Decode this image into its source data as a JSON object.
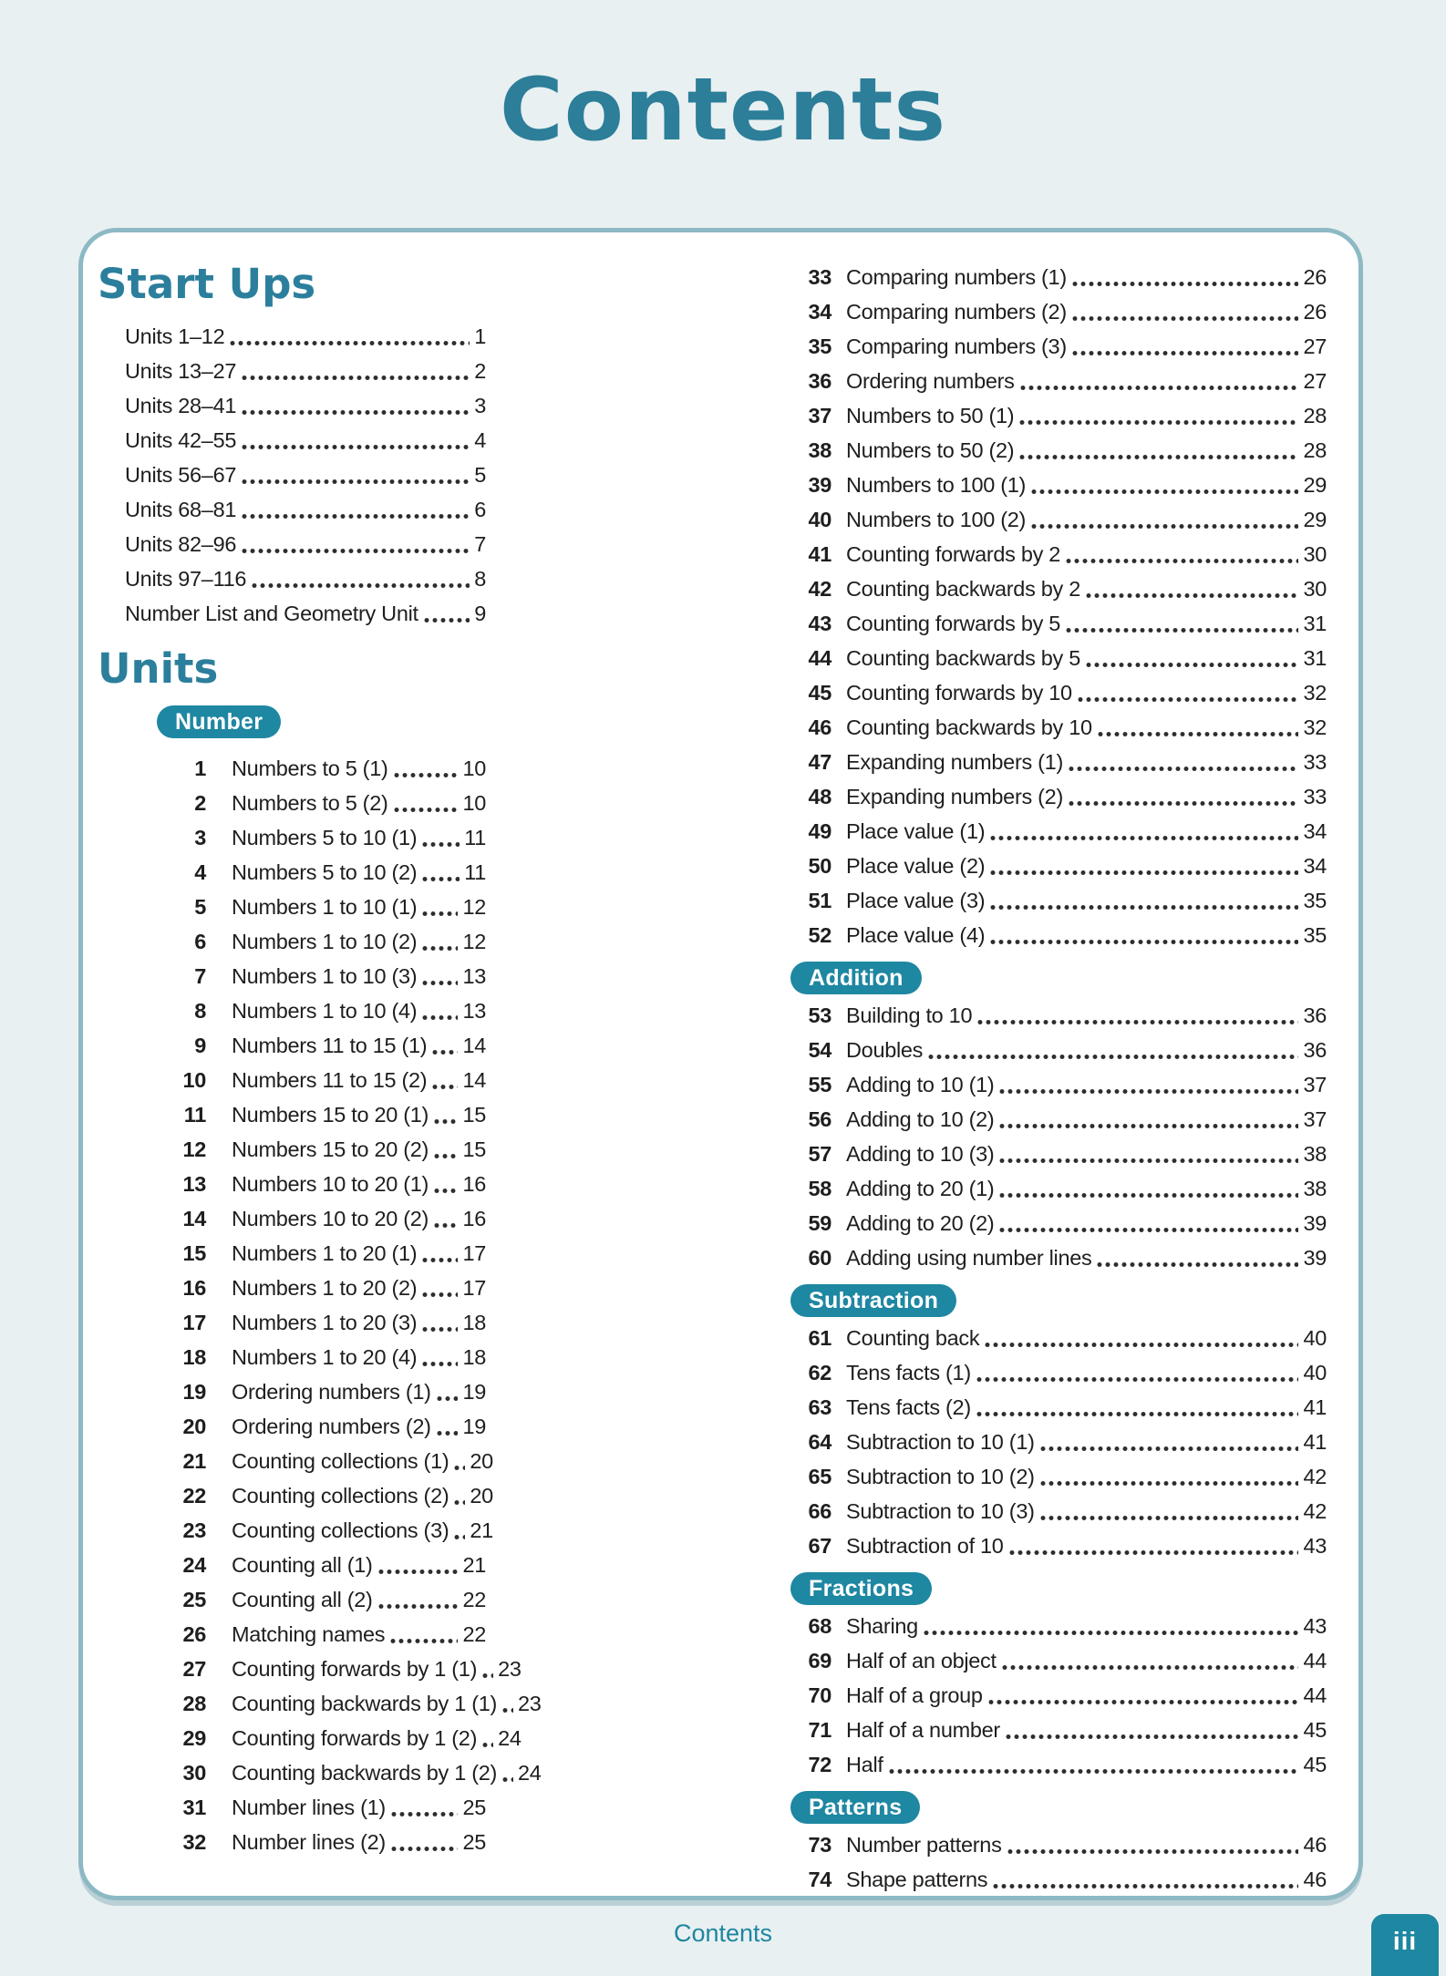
{
  "page_title": "Contents",
  "colors": {
    "page_background": "#e9f0f2",
    "panel_background": "#ffffff",
    "panel_border": "#8db9c4",
    "accent_teal": "#1e87a2",
    "heading_teal": "#2c7f9c",
    "title_teal": "#2c7e99",
    "footer_teal": "#1f86a0",
    "body_text": "#1e1e1e"
  },
  "toc": {
    "start_ups": {
      "heading": "Start Ups",
      "items": [
        {
          "label": "Units 1–12",
          "page": "1"
        },
        {
          "label": "Units 13–27",
          "page": "2"
        },
        {
          "label": "Units 28–41",
          "page": "3"
        },
        {
          "label": "Units 42–55",
          "page": "4"
        },
        {
          "label": "Units 56–67",
          "page": "5"
        },
        {
          "label": "Units 68–81",
          "page": "6"
        },
        {
          "label": "Units 82–96",
          "page": "7"
        },
        {
          "label": "Units 97–116",
          "page": "8"
        },
        {
          "label": "Number List and Geometry Unit",
          "page": "9"
        }
      ]
    },
    "units": {
      "heading": "Units",
      "groups": [
        {
          "badge": "Number",
          "items": [
            {
              "num": "1",
              "label": "Numbers to 5 (1)",
              "page": "10"
            },
            {
              "num": "2",
              "label": "Numbers to 5 (2)",
              "page": "10"
            },
            {
              "num": "3",
              "label": "Numbers 5 to 10 (1)",
              "page": "11"
            },
            {
              "num": "4",
              "label": "Numbers 5 to 10 (2)",
              "page": "11"
            },
            {
              "num": "5",
              "label": "Numbers 1 to 10 (1)",
              "page": "12"
            },
            {
              "num": "6",
              "label": "Numbers 1 to 10 (2)",
              "page": "12"
            },
            {
              "num": "7",
              "label": "Numbers 1 to 10 (3)",
              "page": "13"
            },
            {
              "num": "8",
              "label": "Numbers 1 to 10 (4)",
              "page": "13"
            },
            {
              "num": "9",
              "label": "Numbers 11 to 15 (1)",
              "page": "14"
            },
            {
              "num": "10",
              "label": "Numbers 11 to 15 (2)",
              "page": "14"
            },
            {
              "num": "11",
              "label": "Numbers 15 to 20 (1)",
              "page": "15"
            },
            {
              "num": "12",
              "label": "Numbers 15 to 20 (2)",
              "page": "15"
            },
            {
              "num": "13",
              "label": "Numbers 10 to 20 (1)",
              "page": "16"
            },
            {
              "num": "14",
              "label": "Numbers 10 to 20 (2)",
              "page": "16"
            },
            {
              "num": "15",
              "label": "Numbers 1 to 20 (1)",
              "page": "17"
            },
            {
              "num": "16",
              "label": "Numbers 1 to 20 (2)",
              "page": "17"
            },
            {
              "num": "17",
              "label": "Numbers 1 to 20 (3)",
              "page": "18"
            },
            {
              "num": "18",
              "label": "Numbers 1 to 20 (4)",
              "page": "18"
            },
            {
              "num": "19",
              "label": "Ordering numbers (1)",
              "page": "19"
            },
            {
              "num": "20",
              "label": "Ordering numbers (2)",
              "page": "19"
            },
            {
              "num": "21",
              "label": "Counting collections (1)",
              "page": "20"
            },
            {
              "num": "22",
              "label": "Counting collections (2)",
              "page": "20"
            },
            {
              "num": "23",
              "label": "Counting collections (3)",
              "page": "21"
            },
            {
              "num": "24",
              "label": "Counting all (1)",
              "page": "21"
            },
            {
              "num": "25",
              "label": "Counting all (2)",
              "page": "22"
            },
            {
              "num": "26",
              "label": "Matching names",
              "page": "22"
            },
            {
              "num": "27",
              "label": "Counting forwards by 1 (1)",
              "page": "23"
            },
            {
              "num": "28",
              "label": "Counting backwards by 1 (1)",
              "page": "23"
            },
            {
              "num": "29",
              "label": "Counting forwards by 1 (2)",
              "page": "24"
            },
            {
              "num": "30",
              "label": "Counting backwards by 1 (2)",
              "page": "24"
            },
            {
              "num": "31",
              "label": "Number lines (1)",
              "page": "25"
            },
            {
              "num": "32",
              "label": "Number lines (2)",
              "page": "25"
            },
            {
              "num": "33",
              "label": "Comparing numbers (1)",
              "page": "26"
            },
            {
              "num": "34",
              "label": "Comparing numbers (2)",
              "page": "26"
            },
            {
              "num": "35",
              "label": "Comparing numbers (3)",
              "page": "27"
            },
            {
              "num": "36",
              "label": "Ordering numbers",
              "page": "27"
            },
            {
              "num": "37",
              "label": "Numbers to 50 (1)",
              "page": "28"
            },
            {
              "num": "38",
              "label": "Numbers to 50 (2)",
              "page": "28"
            },
            {
              "num": "39",
              "label": "Numbers to 100 (1)",
              "page": "29"
            },
            {
              "num": "40",
              "label": "Numbers to 100 (2)",
              "page": "29"
            },
            {
              "num": "41",
              "label": "Counting forwards by 2",
              "page": "30"
            },
            {
              "num": "42",
              "label": "Counting backwards by 2",
              "page": "30"
            },
            {
              "num": "43",
              "label": "Counting forwards by 5",
              "page": "31"
            },
            {
              "num": "44",
              "label": "Counting backwards by 5",
              "page": "31"
            },
            {
              "num": "45",
              "label": "Counting forwards by 10",
              "page": "32"
            },
            {
              "num": "46",
              "label": "Counting backwards by 10",
              "page": "32"
            },
            {
              "num": "47",
              "label": "Expanding numbers (1)",
              "page": "33"
            },
            {
              "num": "48",
              "label": "Expanding numbers (2)",
              "page": "33"
            },
            {
              "num": "49",
              "label": "Place value (1)",
              "page": "34"
            },
            {
              "num": "50",
              "label": "Place value (2)",
              "page": "34"
            },
            {
              "num": "51",
              "label": "Place value (3)",
              "page": "35"
            },
            {
              "num": "52",
              "label": "Place value (4)",
              "page": "35"
            }
          ]
        },
        {
          "badge": "Addition",
          "items": [
            {
              "num": "53",
              "label": "Building to 10",
              "page": "36"
            },
            {
              "num": "54",
              "label": "Doubles",
              "page": "36"
            },
            {
              "num": "55",
              "label": "Adding to 10 (1)",
              "page": "37"
            },
            {
              "num": "56",
              "label": "Adding to 10 (2)",
              "page": "37"
            },
            {
              "num": "57",
              "label": "Adding to 10 (3)",
              "page": "38"
            },
            {
              "num": "58",
              "label": "Adding to 20 (1)",
              "page": "38"
            },
            {
              "num": "59",
              "label": "Adding to 20 (2)",
              "page": "39"
            },
            {
              "num": "60",
              "label": "Adding using number lines",
              "page": "39"
            }
          ]
        },
        {
          "badge": "Subtraction",
          "items": [
            {
              "num": "61",
              "label": "Counting back",
              "page": "40"
            },
            {
              "num": "62",
              "label": "Tens facts (1)",
              "page": "40"
            },
            {
              "num": "63",
              "label": "Tens facts (2)",
              "page": "41"
            },
            {
              "num": "64",
              "label": "Subtraction to 10 (1)",
              "page": "41"
            },
            {
              "num": "65",
              "label": "Subtraction to 10 (2)",
              "page": "42"
            },
            {
              "num": "66",
              "label": "Subtraction to 10 (3)",
              "page": "42"
            },
            {
              "num": "67",
              "label": "Subtraction of 10",
              "page": "43"
            }
          ]
        },
        {
          "badge": "Fractions",
          "items": [
            {
              "num": "68",
              "label": "Sharing",
              "page": "43"
            },
            {
              "num": "69",
              "label": "Half of an object",
              "page": "44"
            },
            {
              "num": "70",
              "label": "Half of a group",
              "page": "44"
            },
            {
              "num": "71",
              "label": "Half of a number",
              "page": "45"
            },
            {
              "num": "72",
              "label": "Half",
              "page": "45"
            }
          ]
        },
        {
          "badge": "Patterns",
          "items": [
            {
              "num": "73",
              "label": "Number patterns",
              "page": "46"
            },
            {
              "num": "74",
              "label": "Shape patterns",
              "page": "46"
            }
          ]
        }
      ]
    }
  },
  "layout": {
    "left_column_unit_count": 32
  },
  "footer": {
    "label": "Contents",
    "page_number": "iii"
  }
}
